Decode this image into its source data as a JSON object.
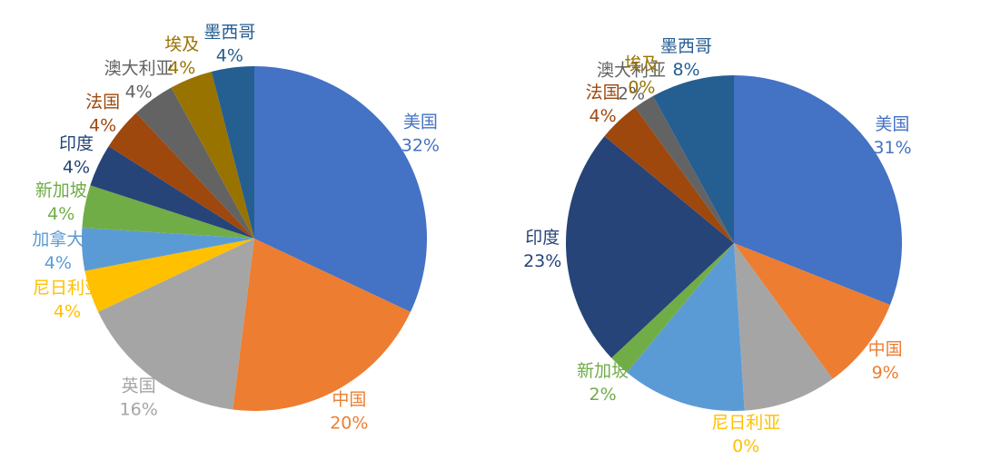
{
  "chart_data": [
    {
      "type": "pie",
      "categories": [
        "美国",
        "中国",
        "英国",
        "尼日利亚",
        "加拿大",
        "新加坡",
        "印度",
        "法国",
        "澳大利亚",
        "埃及",
        "墨西哥"
      ],
      "values": [
        32,
        20,
        16,
        4,
        4,
        4,
        4,
        4,
        4,
        4,
        4
      ],
      "value_labels": [
        "32%",
        "20%",
        "16%",
        "4%",
        "4%",
        "4%",
        "4%",
        "4%",
        "4%",
        "4%",
        "4%"
      ],
      "colors": [
        "#4472c4",
        "#ed7d31",
        "#a5a5a5",
        "#ffc000",
        "#5b9bd5",
        "#70ad47",
        "#264478",
        "#9e480e",
        "#636363",
        "#997300",
        "#255e91"
      ]
    },
    {
      "type": "pie",
      "categories": [
        "美国",
        "中国",
        null,
        "尼日利亚",
        null,
        "新加坡",
        "印度",
        "法国",
        "澳大利亚",
        "埃及",
        "墨西哥"
      ],
      "values": [
        31,
        9,
        9,
        0,
        12,
        2,
        23,
        4,
        2,
        0,
        8
      ],
      "value_labels": [
        "31%",
        "9%",
        null,
        "0%",
        null,
        "2%",
        "23%",
        "4%",
        "2%",
        "0%",
        "8%"
      ],
      "colors": [
        "#4472c4",
        "#ed7d31",
        "#a5a5a5",
        "#ffc000",
        "#5b9bd5",
        "#70ad47",
        "#264478",
        "#9e480e",
        "#636363",
        "#997300",
        "#255e91"
      ]
    }
  ]
}
